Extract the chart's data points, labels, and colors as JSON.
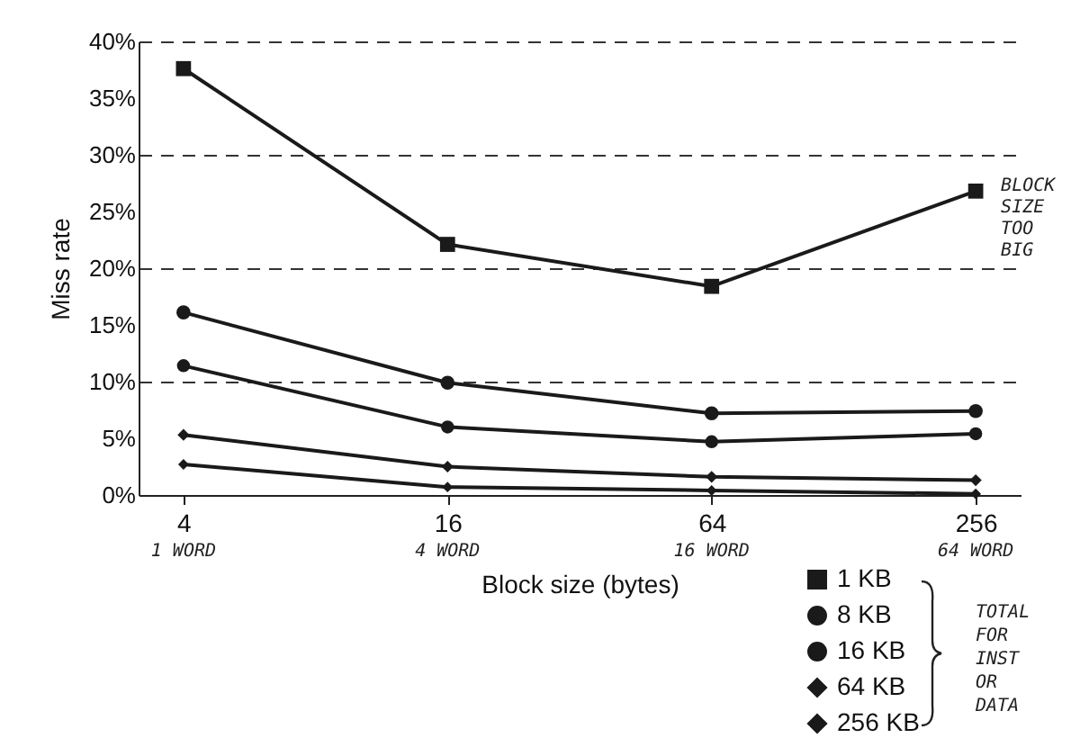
{
  "chart_data": {
    "type": "line",
    "xlabel": "Block size (bytes)",
    "ylabel": "Miss rate",
    "categories": [
      "4",
      "16",
      "64",
      "256"
    ],
    "series": [
      {
        "name": "1 KB",
        "color": "#1a1a1a",
        "marker": "square",
        "values": [
          37.6,
          22.1,
          18.4,
          26.8
        ]
      },
      {
        "name": "8 KB",
        "color": "#1a1a1a",
        "marker": "circle",
        "values": [
          16.1,
          9.9,
          7.2,
          7.4
        ]
      },
      {
        "name": "16 KB",
        "color": "#1a1a1a",
        "marker": "circle",
        "values": [
          11.4,
          6.0,
          4.7,
          5.4
        ]
      },
      {
        "name": "64 KB",
        "color": "#1a1a1a",
        "marker": "diamond",
        "values": [
          5.3,
          2.5,
          1.6,
          1.3
        ]
      },
      {
        "name": "256 KB",
        "color": "#1a1a1a",
        "marker": "diamond",
        "values": [
          2.7,
          0.7,
          0.4,
          0.1
        ]
      }
    ],
    "ylim": [
      0,
      40
    ],
    "yticks": [
      {
        "value": 0,
        "label": "0%"
      },
      {
        "value": 5,
        "label": "5%"
      },
      {
        "value": 10,
        "label": "10%"
      },
      {
        "value": 15,
        "label": "15%"
      },
      {
        "value": 20,
        "label": "20%"
      },
      {
        "value": 25,
        "label": "25%"
      },
      {
        "value": 30,
        "label": "30%"
      },
      {
        "value": 35,
        "label": "35%"
      },
      {
        "value": 40,
        "label": "40%"
      }
    ],
    "grid": "y",
    "line_style": "solid",
    "legend": "bottom right",
    "annotations": [
      {
        "text": "BLOCK SIZE TOO BIG",
        "x": "256",
        "y": 26.8
      },
      "1 WORD",
      "4 WORD",
      "16 WORD",
      "64 WORD",
      "TOTAL FOR INST OR DATA"
    ]
  }
}
